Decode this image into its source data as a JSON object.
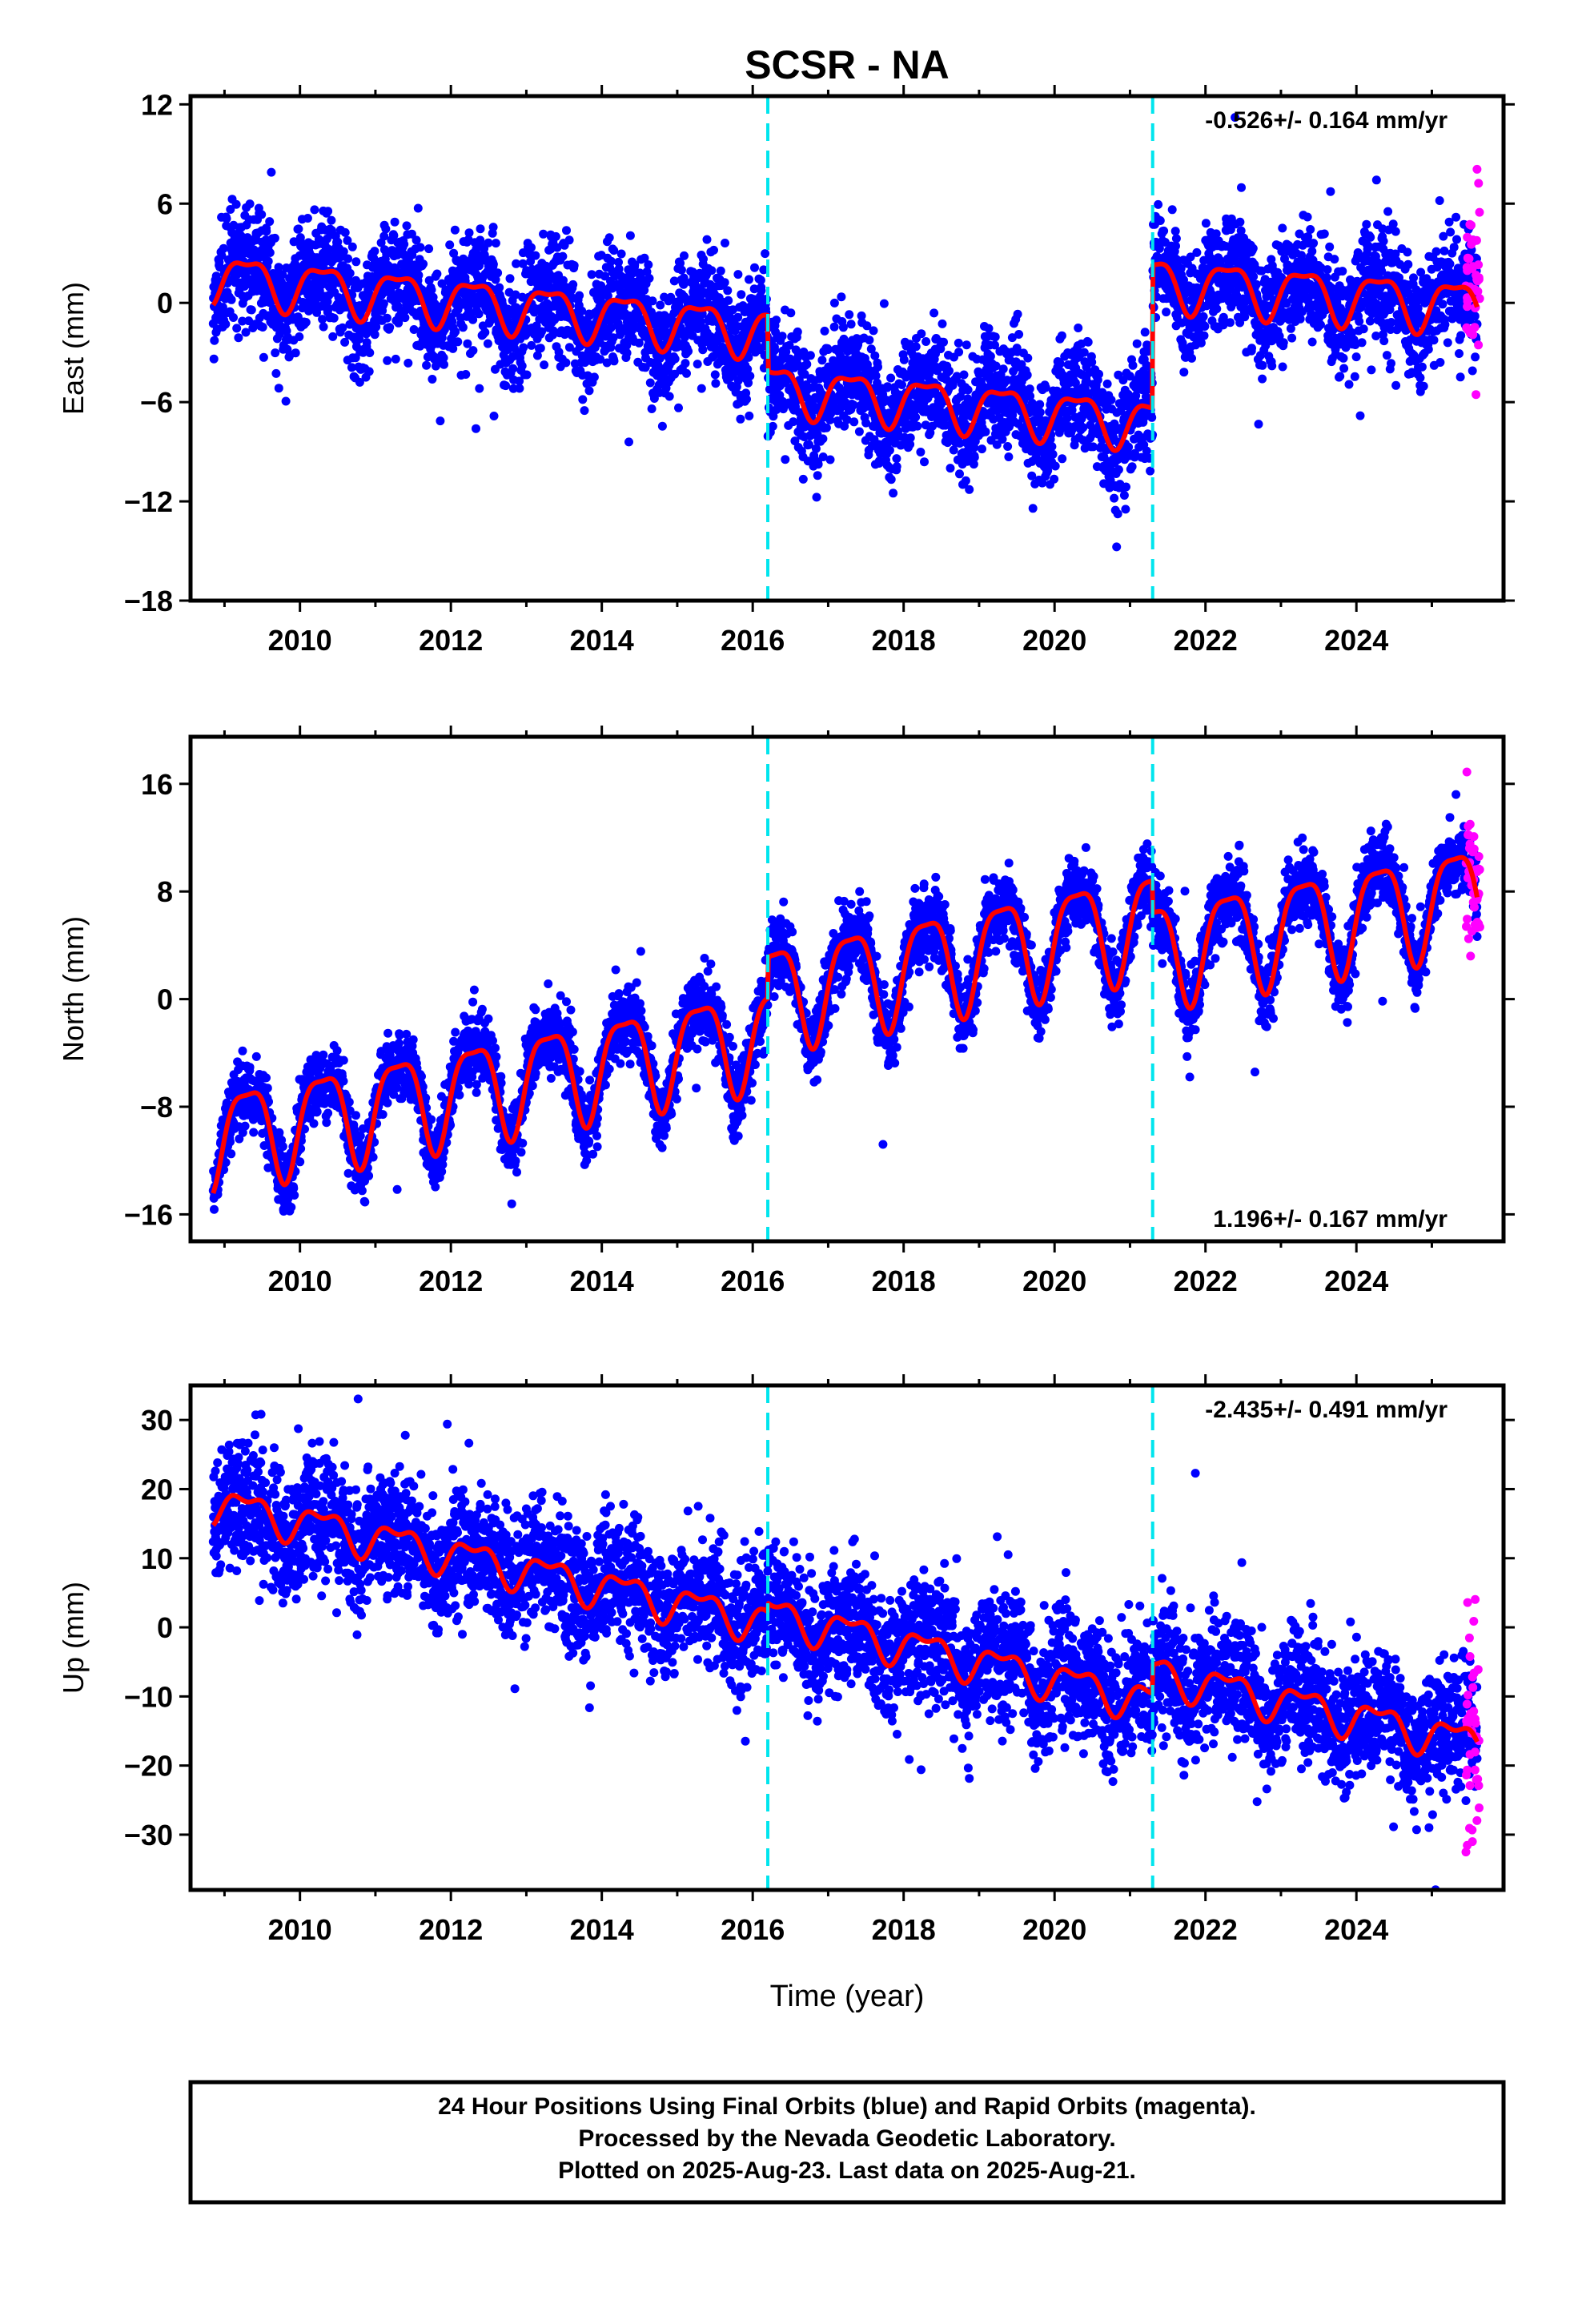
{
  "title": "SCSR - NA",
  "xlabel": "Time (year)",
  "footer": {
    "line1": "24 Hour Positions Using Final Orbits (blue) and Rapid Orbits (magenta).",
    "line2": "Processed by the Nevada Geodetic Laboratory.",
    "line3": "Plotted on 2025-Aug-23. Last data on 2025-Aug-21."
  },
  "colors": {
    "final_points": "#0000ff",
    "rapid_points": "#ff00ff",
    "model": "#ff0000",
    "steps": "#00e5ee"
  },
  "chart_data": [
    {
      "type": "scatter",
      "panel": "east",
      "ylabel": "East (mm)",
      "rate_text": "-0.526+/- 0.164 mm/yr",
      "rate_position": "top-right",
      "xlim": [
        2008.55,
        2025.95
      ],
      "ylim": [
        -18,
        12.5
      ],
      "yticks": [
        12,
        6,
        0,
        -6,
        -12,
        -18
      ],
      "ytick_labels": [
        "12",
        "6",
        "0",
        "−6",
        "−12",
        "−18"
      ],
      "xticks": [
        2010,
        2012,
        2014,
        2016,
        2018,
        2020,
        2022,
        2024
      ],
      "xtick_labels": [
        "2010",
        "2012",
        "2014",
        "2016",
        "2018",
        "2020",
        "2022",
        "2024"
      ],
      "step_times": [
        2016.2,
        2021.3
      ],
      "data_span": [
        2008.85,
        2025.6
      ],
      "rapid_span": [
        2025.45,
        2025.64
      ],
      "model_segments": [
        {
          "start": 2008.85,
          "end": 2016.2,
          "offset": 1.6,
          "rate": -0.45,
          "amp_annual": 1.4,
          "amp_semiannual": 0.5
        },
        {
          "start": 2016.2,
          "end": 2021.3,
          "offset": -5.1,
          "rate": -0.42,
          "amp_annual": 1.4,
          "amp_semiannual": 0.5
        },
        {
          "start": 2021.3,
          "end": 2025.6,
          "offset": 1.3,
          "rate": -0.35,
          "amp_annual": 1.5,
          "amp_semiannual": 0.5
        }
      ],
      "scatter_sd": 1.7
    },
    {
      "type": "scatter",
      "panel": "north",
      "ylabel": "North (mm)",
      "rate_text": "1.196+/- 0.167 mm/yr",
      "rate_position": "bottom-right",
      "xlim": [
        2008.55,
        2025.95
      ],
      "ylim": [
        -18,
        19.5
      ],
      "yticks": [
        16,
        8,
        0,
        -8,
        -16
      ],
      "ytick_labels": [
        "16",
        "8",
        "0",
        "−8",
        "−16"
      ],
      "xticks": [
        2010,
        2012,
        2014,
        2016,
        2018,
        2020,
        2022,
        2024
      ],
      "xtick_labels": [
        "2010",
        "2012",
        "2014",
        "2016",
        "2018",
        "2020",
        "2022",
        "2024"
      ],
      "step_times": [
        2016.2,
        2021.3
      ],
      "data_span": [
        2008.85,
        2025.6
      ],
      "rapid_span": [
        2025.45,
        2025.64
      ],
      "model_segments": [
        {
          "start": 2008.85,
          "end": 2016.2,
          "offset": -10.2,
          "rate": 1.05,
          "amp_annual": 3.6,
          "amp_semiannual": 1.0
        },
        {
          "start": 2016.2,
          "end": 2021.3,
          "offset": 0.4,
          "rate": 1.1,
          "amp_annual": 3.8,
          "amp_semiannual": 1.0
        },
        {
          "start": 2021.3,
          "end": 2025.6,
          "offset": 3.6,
          "rate": 1.0,
          "amp_annual": 3.8,
          "amp_semiannual": 1.0
        }
      ],
      "scatter_sd": 1.3
    },
    {
      "type": "scatter",
      "panel": "up",
      "ylabel": "Up (mm)",
      "rate_text": "-2.435+/- 0.491 mm/yr",
      "rate_position": "top-right",
      "xlim": [
        2008.55,
        2025.95
      ],
      "ylim": [
        -38,
        35
      ],
      "yticks": [
        30,
        20,
        10,
        0,
        -10,
        -20,
        -30
      ],
      "ytick_labels": [
        "30",
        "20",
        "10",
        "0",
        "−10",
        "−20",
        "−30"
      ],
      "xticks": [
        2010,
        2012,
        2014,
        2016,
        2018,
        2020,
        2022,
        2024
      ],
      "xtick_labels": [
        "2010",
        "2012",
        "2014",
        "2016",
        "2018",
        "2020",
        "2022",
        "2024"
      ],
      "step_times": [
        2016.2,
        2021.3
      ],
      "data_span": [
        2008.85,
        2025.6
      ],
      "rapid_span": [
        2025.45,
        2025.64
      ],
      "model_segments": [
        {
          "start": 2008.85,
          "end": 2016.2,
          "offset": 18.0,
          "rate": -2.35,
          "amp_annual": 2.4,
          "amp_semiannual": 1.2
        },
        {
          "start": 2016.2,
          "end": 2021.3,
          "offset": 2.0,
          "rate": -2.5,
          "amp_annual": 2.4,
          "amp_semiannual": 1.2
        },
        {
          "start": 2021.3,
          "end": 2025.6,
          "offset": -6.5,
          "rate": -2.4,
          "amp_annual": 2.4,
          "amp_semiannual": 1.2
        }
      ],
      "scatter_sd": 4.5
    }
  ]
}
